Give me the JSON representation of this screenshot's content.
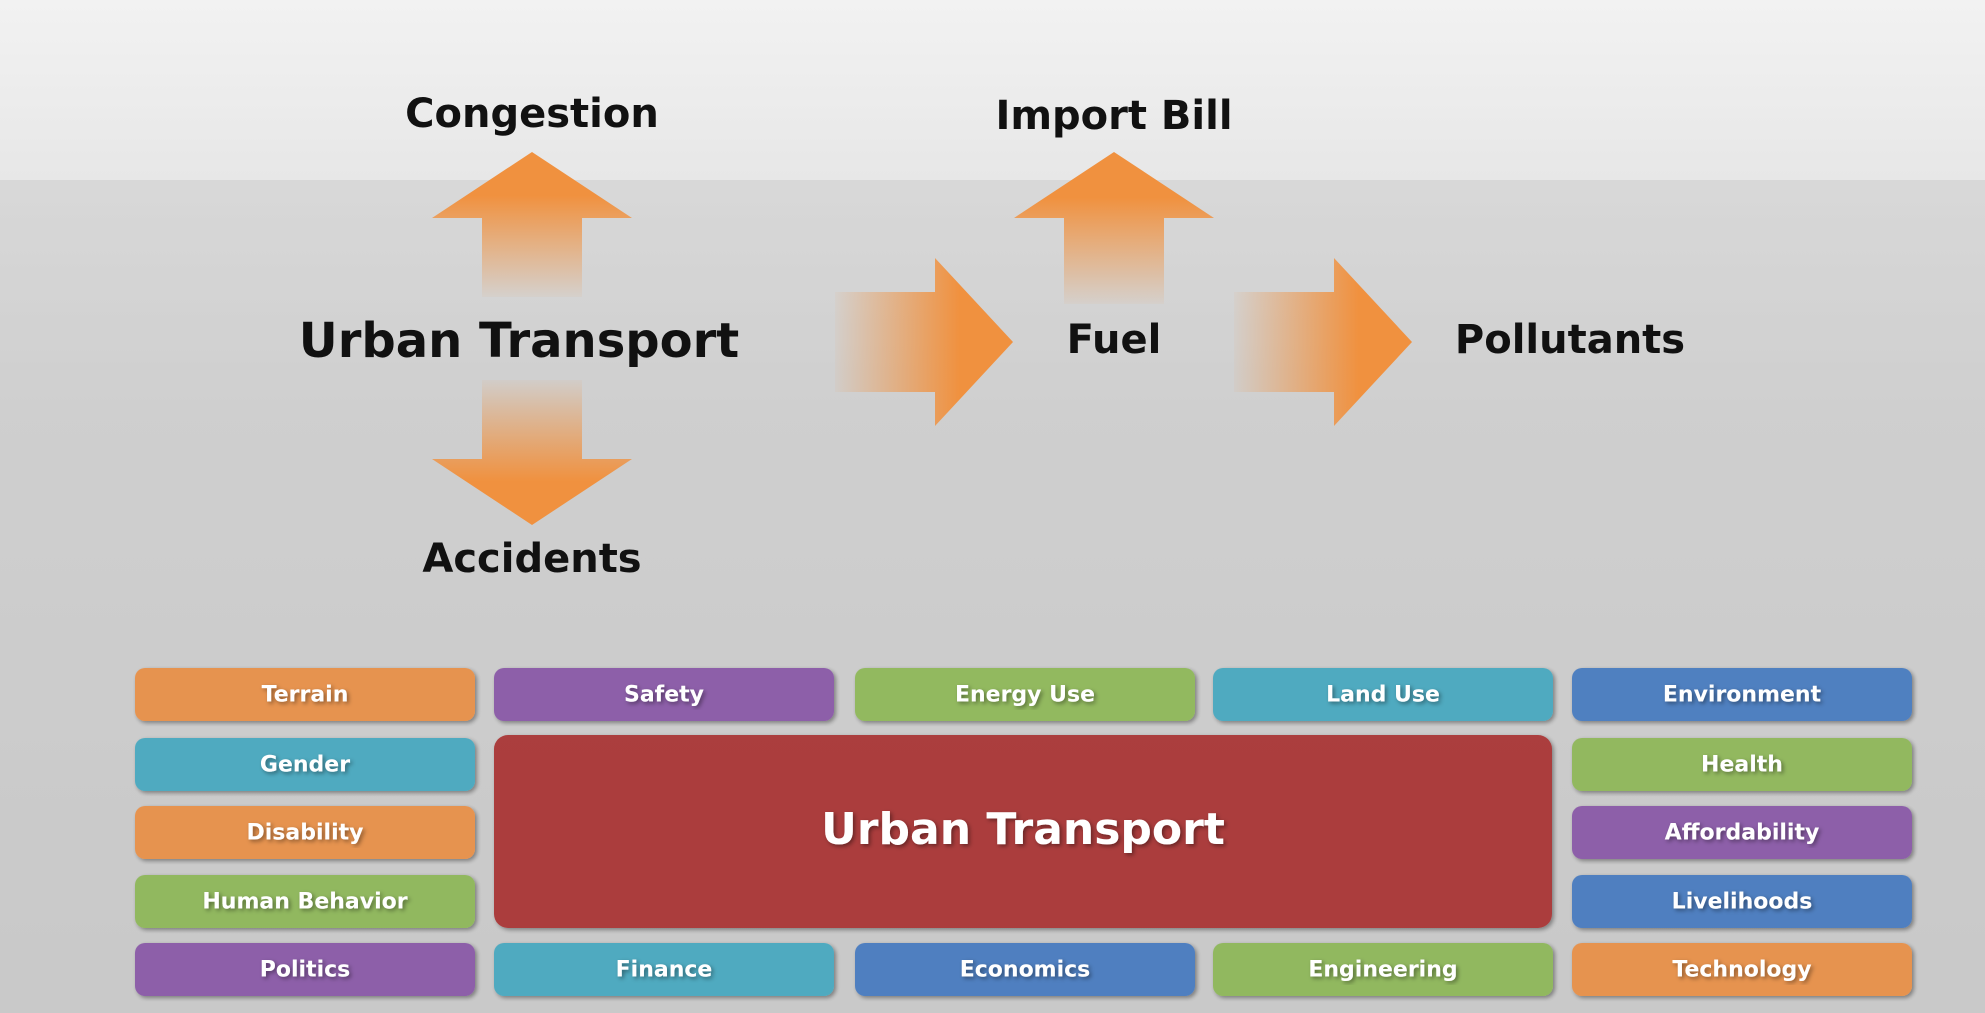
{
  "flow": {
    "center": "Urban Transport",
    "up": "Congestion",
    "down": "Accidents",
    "fuel": "Fuel",
    "fuel_up": "Import Bill",
    "end": "Pollutants"
  },
  "grid": {
    "center": "Urban Transport",
    "tiles": [
      {
        "label": "Terrain",
        "color": "#e8914a"
      },
      {
        "label": "Safety",
        "color": "#8a5aa8"
      },
      {
        "label": "Energy Use",
        "color": "#8fb85a"
      },
      {
        "label": "Land Use",
        "color": "#4aa9c0"
      },
      {
        "label": "Environment",
        "color": "#4a7cc0"
      },
      {
        "label": "Gender",
        "color": "#4aa9c0"
      },
      {
        "label": "Health",
        "color": "#8fb85a"
      },
      {
        "label": "Disability",
        "color": "#e8914a"
      },
      {
        "label": "Affordability",
        "color": "#8a5aa8"
      },
      {
        "label": "Human Behavior",
        "color": "#8fb85a"
      },
      {
        "label": "Livelihoods",
        "color": "#4a7cc0"
      },
      {
        "label": "Politics",
        "color": "#8a5aa8"
      },
      {
        "label": "Finance",
        "color": "#4aa9c0"
      },
      {
        "label": "Economics",
        "color": "#4a7cc0"
      },
      {
        "label": "Engineering",
        "color": "#8fb85a"
      },
      {
        "label": "Technology",
        "color": "#e8914a"
      }
    ]
  }
}
